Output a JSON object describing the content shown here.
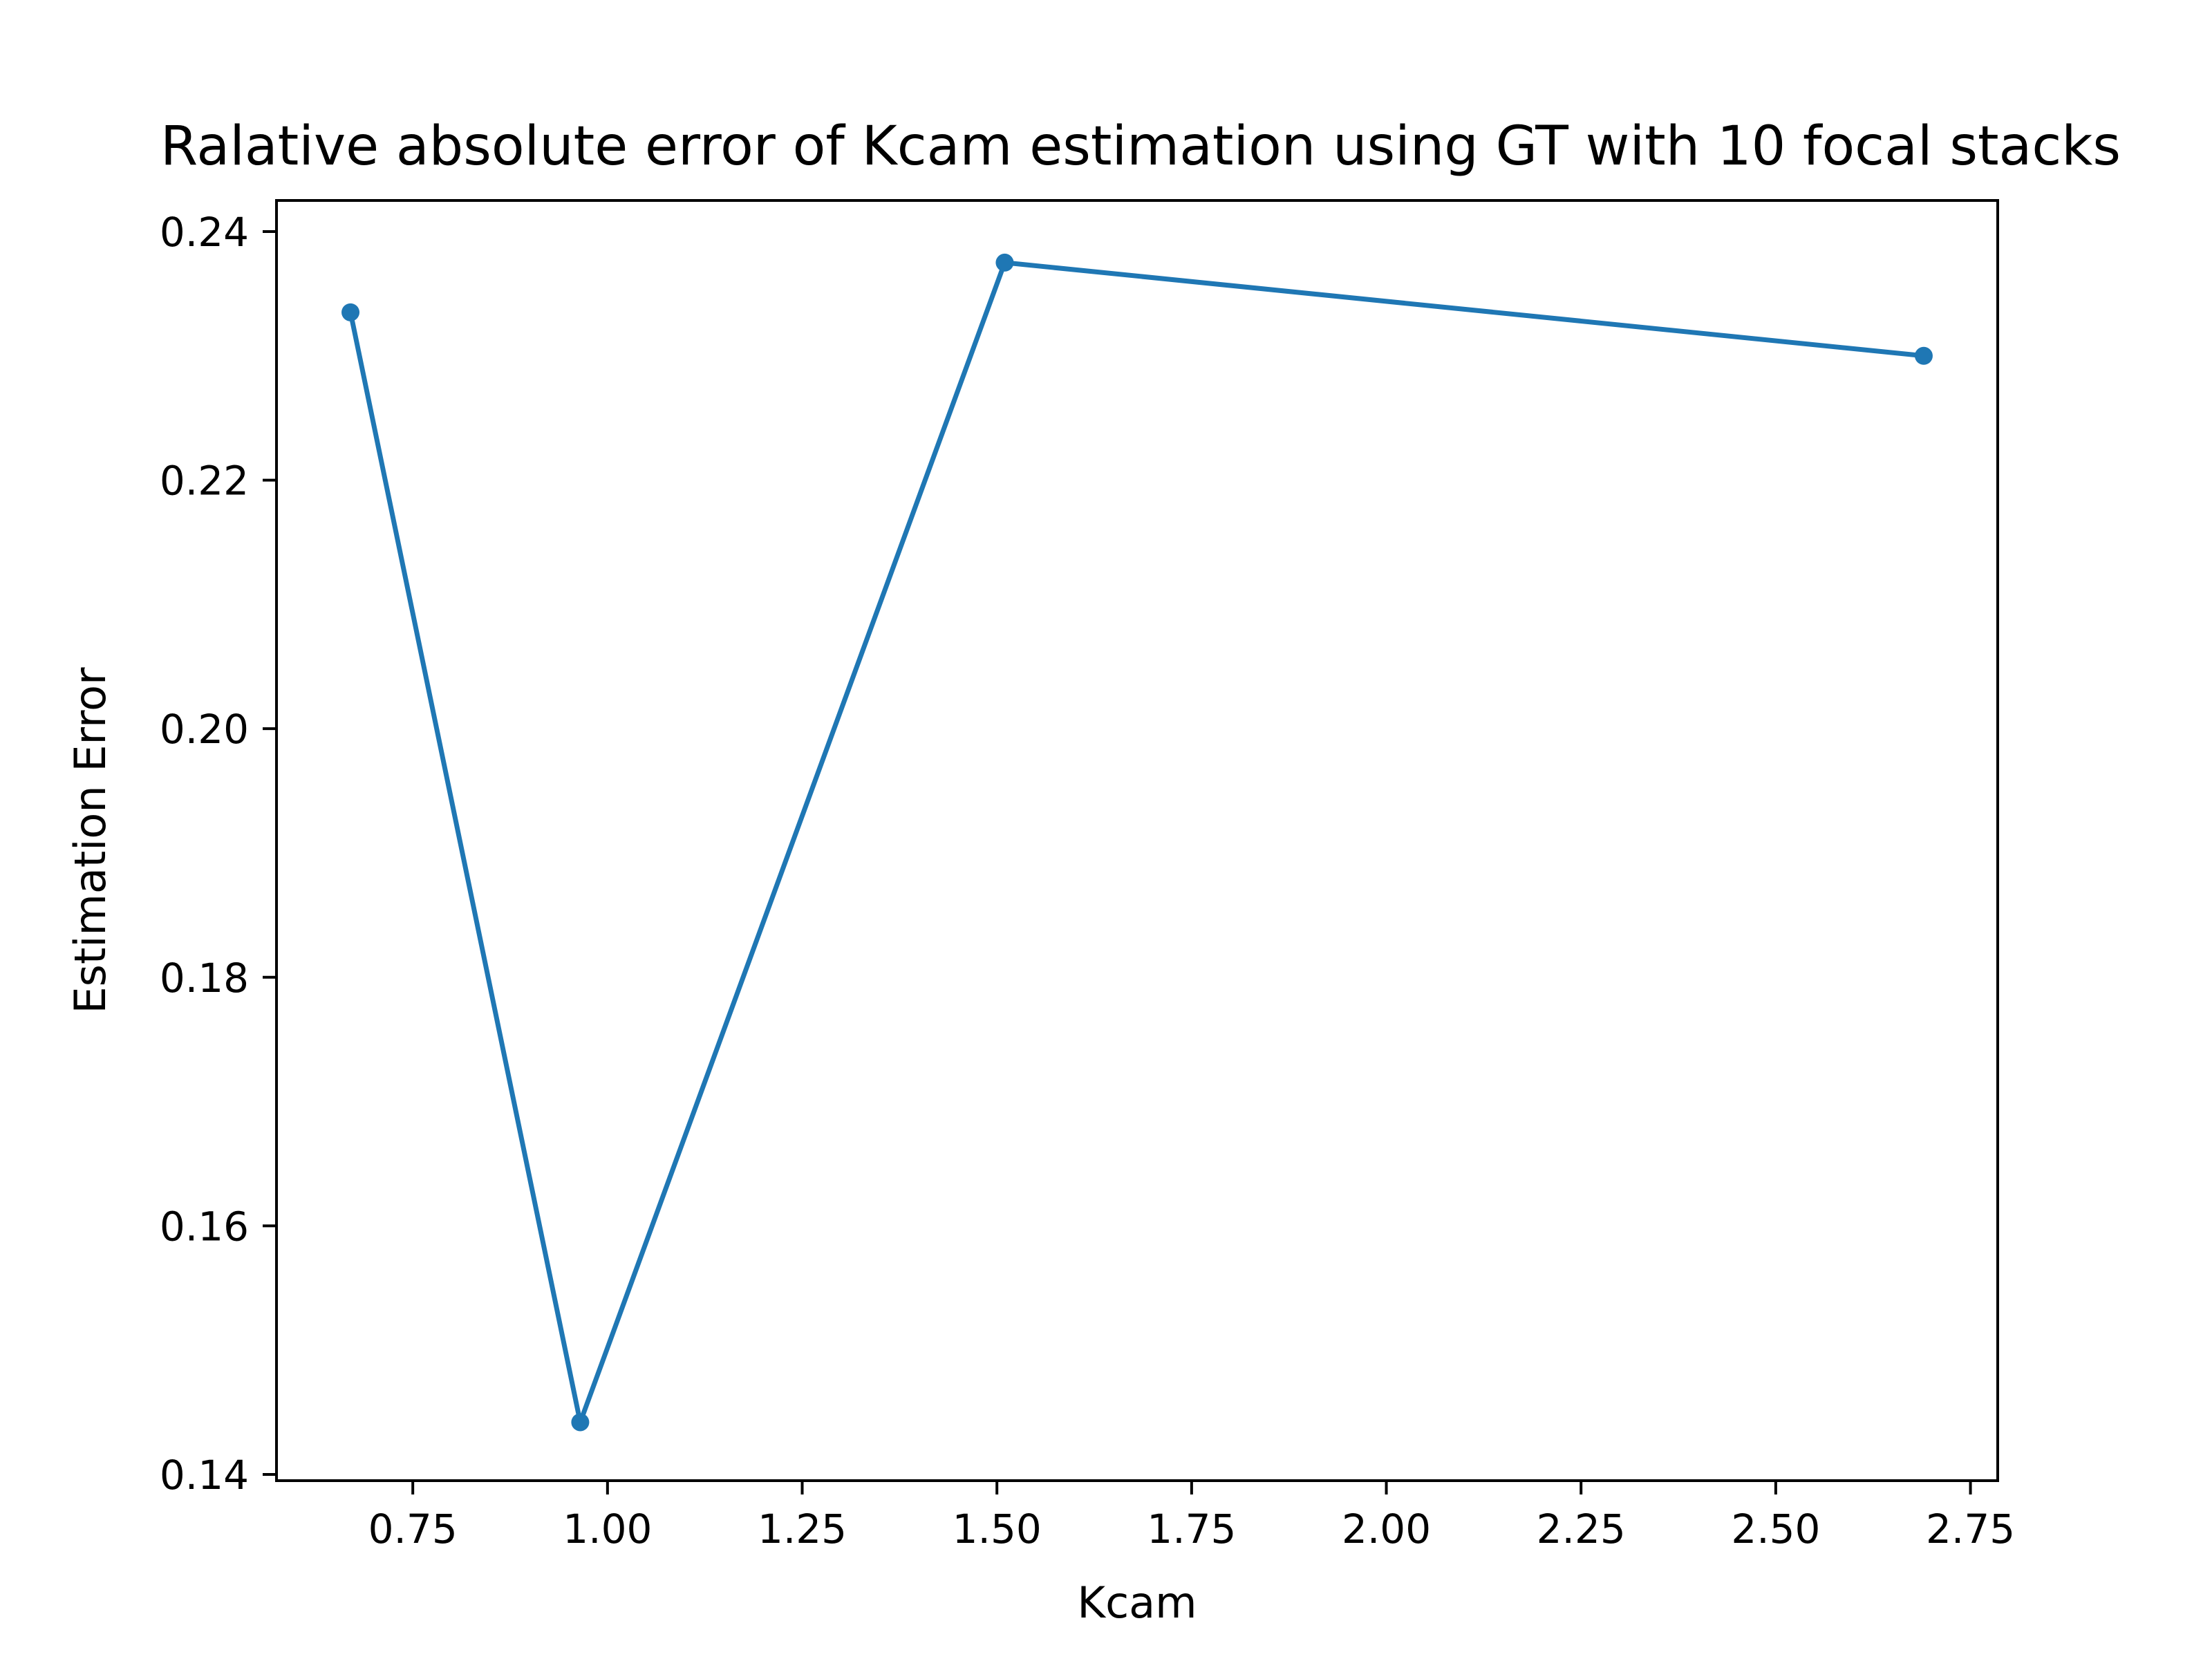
{
  "chart_data": {
    "type": "line",
    "title": "Ralative absolute error of Kcam estimation using GT with 10 focal stacks",
    "xlabel": "Kcam",
    "ylabel": "Estimation Error",
    "xlim": [
      0.575,
      2.785
    ],
    "ylim": [
      0.1395,
      0.2425
    ],
    "x_ticks": [
      0.75,
      1.0,
      1.25,
      1.5,
      1.75,
      2.0,
      2.25,
      2.5,
      2.75
    ],
    "x_tick_labels": [
      "0.75",
      "1.00",
      "1.25",
      "1.50",
      "1.75",
      "2.00",
      "2.25",
      "2.50",
      "2.75"
    ],
    "y_ticks": [
      0.14,
      0.16,
      0.18,
      0.2,
      0.22,
      0.24
    ],
    "y_tick_labels": [
      "0.14",
      "0.16",
      "0.18",
      "0.20",
      "0.22",
      "0.24"
    ],
    "grid": false,
    "series": [
      {
        "color": "#1f77b4",
        "marker": "circle",
        "x": [
          0.67,
          0.965,
          1.51,
          2.69
        ],
        "y": [
          0.2335,
          0.1442,
          0.2375,
          0.23
        ]
      }
    ]
  }
}
